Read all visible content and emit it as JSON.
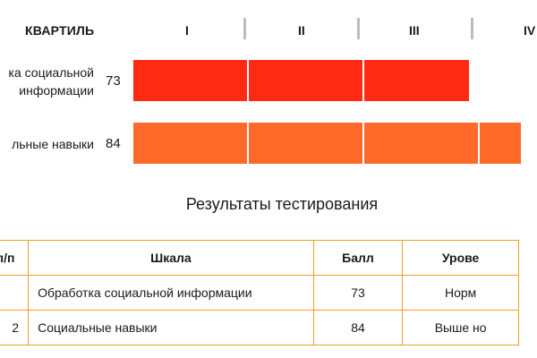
{
  "quartile_header": {
    "label": "КВАРТИЛЬ",
    "columns": [
      "I",
      "II",
      "III",
      "IV"
    ]
  },
  "bars": [
    {
      "label_line1": "ка социальной",
      "label_line2": "информации",
      "score": "73",
      "value": 73,
      "color": "#ff2a12"
    },
    {
      "label_line1": "льные навыки",
      "label_line2": "",
      "score": "84",
      "value": 84,
      "color": "#ff6a2a"
    }
  ],
  "results_title": "Результаты тестирования",
  "table": {
    "headers": [
      "п/п",
      "Шкала",
      "Балл",
      "Урове"
    ],
    "rows": [
      {
        "num": "",
        "scale": "Обработка социальной информации",
        "score": "73",
        "level": "Норм"
      },
      {
        "num": "2",
        "scale": "Социальные навыки",
        "score": "84",
        "level": "Выше но"
      }
    ]
  }
}
